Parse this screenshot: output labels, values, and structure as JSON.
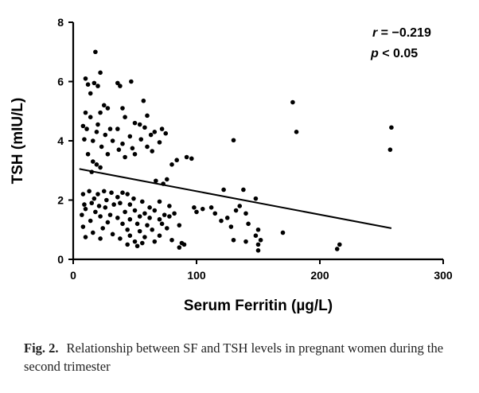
{
  "chart_data": {
    "type": "scatter",
    "xlabel": "Serum Ferritin (µg/L)",
    "ylabel": "TSH (mIU/L)",
    "xlim": [
      0,
      300
    ],
    "ylim": [
      0,
      8
    ],
    "xticks": [
      "0",
      "100",
      "200",
      "300"
    ],
    "yticks": [
      "0",
      "2",
      "4",
      "6",
      "8"
    ],
    "grid": false,
    "annotation": {
      "r_label": "r",
      "r_value": " = −0.219",
      "p_label": "p",
      "p_value": " < 0.05"
    },
    "regression": {
      "x": [
        5,
        258
      ],
      "y": [
        3.05,
        1.05
      ]
    },
    "points": [
      [
        18,
        7.0
      ],
      [
        22,
        6.3
      ],
      [
        10,
        6.1
      ],
      [
        12,
        5.9
      ],
      [
        17,
        5.95
      ],
      [
        20,
        5.85
      ],
      [
        14,
        5.6
      ],
      [
        36,
        5.95
      ],
      [
        38,
        5.85
      ],
      [
        47,
        6.0
      ],
      [
        57,
        5.35
      ],
      [
        178,
        5.3
      ],
      [
        25,
        5.2
      ],
      [
        28,
        5.1
      ],
      [
        40,
        5.1
      ],
      [
        10,
        4.95
      ],
      [
        22,
        4.95
      ],
      [
        14,
        4.8
      ],
      [
        42,
        4.8
      ],
      [
        60,
        4.85
      ],
      [
        8,
        4.5
      ],
      [
        20,
        4.55
      ],
      [
        50,
        4.6
      ],
      [
        54,
        4.55
      ],
      [
        11,
        4.4
      ],
      [
        30,
        4.4
      ],
      [
        36,
        4.4
      ],
      [
        58,
        4.45
      ],
      [
        72,
        4.4
      ],
      [
        19,
        4.3
      ],
      [
        26,
        4.2
      ],
      [
        46,
        4.15
      ],
      [
        63,
        4.2
      ],
      [
        66,
        4.3
      ],
      [
        75,
        4.25
      ],
      [
        181,
        4.3
      ],
      [
        258,
        4.45
      ],
      [
        9,
        4.05
      ],
      [
        16,
        4.0
      ],
      [
        32,
        4.0
      ],
      [
        40,
        3.9
      ],
      [
        55,
        4.05
      ],
      [
        70,
        3.95
      ],
      [
        130,
        4.02
      ],
      [
        23,
        3.8
      ],
      [
        37,
        3.7
      ],
      [
        48,
        3.75
      ],
      [
        60,
        3.8
      ],
      [
        64,
        3.65
      ],
      [
        257,
        3.7
      ],
      [
        12,
        3.55
      ],
      [
        28,
        3.55
      ],
      [
        50,
        3.55
      ],
      [
        42,
        3.45
      ],
      [
        92,
        3.45
      ],
      [
        96,
        3.4
      ],
      [
        84,
        3.35
      ],
      [
        16,
        3.3
      ],
      [
        19,
        3.2
      ],
      [
        22,
        3.1
      ],
      [
        80,
        3.2
      ],
      [
        15,
        2.95
      ],
      [
        67,
        2.65
      ],
      [
        73,
        2.55
      ],
      [
        76,
        2.7
      ],
      [
        8,
        2.2
      ],
      [
        13,
        2.3
      ],
      [
        20,
        2.2
      ],
      [
        25,
        2.3
      ],
      [
        31,
        2.25
      ],
      [
        36,
        2.1
      ],
      [
        40,
        2.25
      ],
      [
        44,
        2.2
      ],
      [
        17,
        2.05
      ],
      [
        27,
        2.0
      ],
      [
        49,
        2.05
      ],
      [
        9,
        1.85
      ],
      [
        15,
        1.9
      ],
      [
        21,
        1.8
      ],
      [
        33,
        1.85
      ],
      [
        38,
        1.9
      ],
      [
        46,
        1.85
      ],
      [
        56,
        1.95
      ],
      [
        62,
        1.75
      ],
      [
        70,
        1.95
      ],
      [
        78,
        1.8
      ],
      [
        10,
        1.7
      ],
      [
        18,
        1.6
      ],
      [
        26,
        1.75
      ],
      [
        42,
        1.6
      ],
      [
        50,
        1.65
      ],
      [
        58,
        1.55
      ],
      [
        66,
        1.65
      ],
      [
        74,
        1.5
      ],
      [
        82,
        1.55
      ],
      [
        7,
        1.5
      ],
      [
        22,
        1.45
      ],
      [
        30,
        1.5
      ],
      [
        36,
        1.4
      ],
      [
        46,
        1.35
      ],
      [
        54,
        1.45
      ],
      [
        62,
        1.4
      ],
      [
        70,
        1.35
      ],
      [
        78,
        1.45
      ],
      [
        14,
        1.3
      ],
      [
        28,
        1.25
      ],
      [
        40,
        1.2
      ],
      [
        52,
        1.2
      ],
      [
        60,
        1.15
      ],
      [
        72,
        1.2
      ],
      [
        86,
        1.15
      ],
      [
        8,
        1.1
      ],
      [
        24,
        1.05
      ],
      [
        44,
        1.0
      ],
      [
        54,
        0.95
      ],
      [
        64,
        1.0
      ],
      [
        76,
        1.05
      ],
      [
        16,
        0.9
      ],
      [
        32,
        0.85
      ],
      [
        46,
        0.8
      ],
      [
        58,
        0.75
      ],
      [
        70,
        0.8
      ],
      [
        10,
        0.75
      ],
      [
        22,
        0.7
      ],
      [
        38,
        0.7
      ],
      [
        50,
        0.6
      ],
      [
        56,
        0.55
      ],
      [
        66,
        0.6
      ],
      [
        80,
        0.65
      ],
      [
        88,
        0.55
      ],
      [
        44,
        0.5
      ],
      [
        52,
        0.45
      ],
      [
        90,
        0.5
      ],
      [
        86,
        0.4
      ],
      [
        98,
        1.75
      ],
      [
        100,
        1.6
      ],
      [
        105,
        1.7
      ],
      [
        112,
        1.75
      ],
      [
        115,
        1.55
      ],
      [
        120,
        1.3
      ],
      [
        125,
        1.4
      ],
      [
        132,
        1.65
      ],
      [
        135,
        1.8
      ],
      [
        140,
        1.55
      ],
      [
        148,
        2.05
      ],
      [
        128,
        1.1
      ],
      [
        142,
        1.2
      ],
      [
        150,
        1.0
      ],
      [
        148,
        0.8
      ],
      [
        152,
        0.65
      ],
      [
        170,
        0.9
      ],
      [
        150,
        0.5
      ],
      [
        150,
        0.3
      ],
      [
        122,
        2.35
      ],
      [
        138,
        2.35
      ],
      [
        130,
        0.65
      ],
      [
        140,
        0.6
      ],
      [
        216,
        0.5
      ],
      [
        214,
        0.35
      ]
    ]
  },
  "caption": {
    "label": "Fig. 2.",
    "text": "Relationship between SF and TSH levels in pregnant women during the second trimester"
  }
}
